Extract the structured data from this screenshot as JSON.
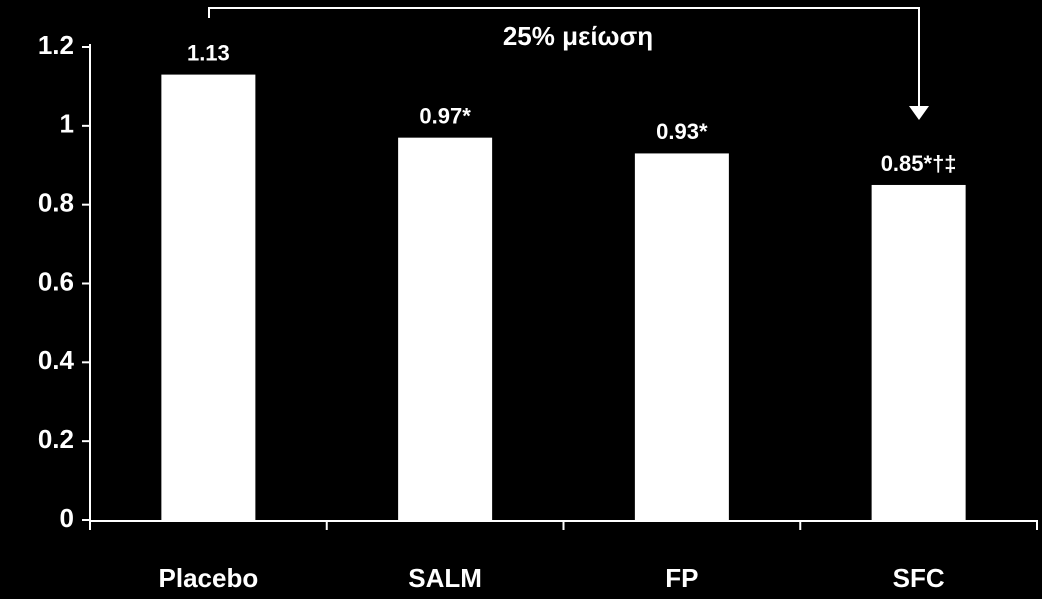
{
  "chart_data": {
    "type": "bar",
    "annotation": "25% μείωση",
    "categories": [
      "Placebo",
      "SALM",
      "FP",
      "SFC"
    ],
    "values": [
      1.13,
      0.97,
      0.93,
      0.85
    ],
    "value_labels": [
      "1.13",
      "0.97*",
      "0.93*",
      "0.85*†‡"
    ],
    "color": "#ffffff",
    "ylim": [
      0,
      1.2
    ],
    "yticks": [
      0,
      0.2,
      0.4,
      0.6,
      0.8,
      1,
      1.2
    ],
    "grid": false
  }
}
